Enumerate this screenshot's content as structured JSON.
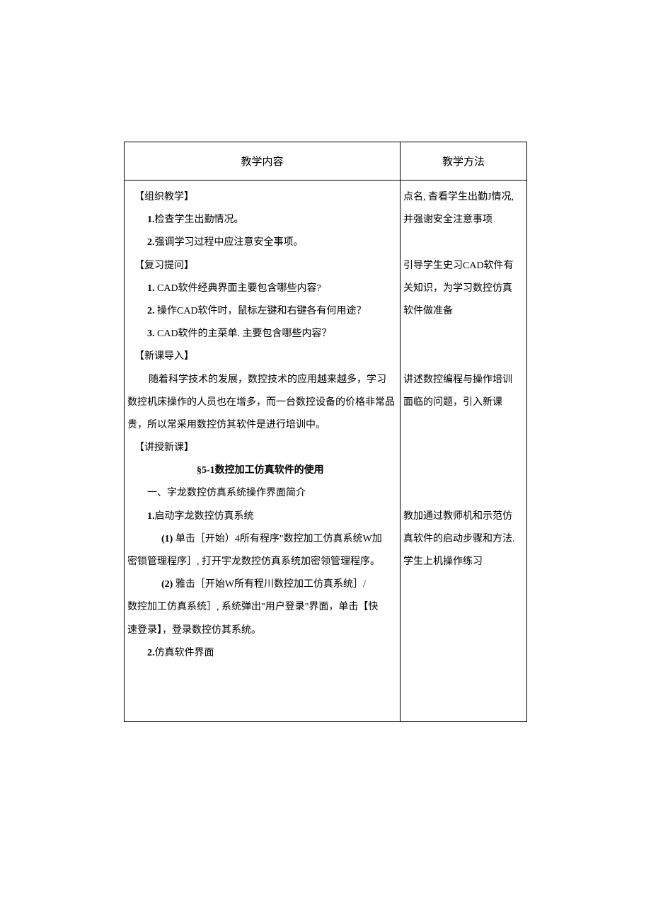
{
  "headers": {
    "left": "教学内容",
    "right": "教学方法"
  },
  "leftContent": {
    "org_teaching": "【组织教学】",
    "item1_prefix": "1.",
    "item1_text": "检查学生出勤情况。",
    "item2_prefix": "2.",
    "item2_text": "强调学习过程中应注意安全事项。",
    "review_q": "【复习提问】",
    "q1_prefix": "1.",
    "q1_text": "  CAD软件经典界面主要包含哪些内容?",
    "q2_prefix": "2.",
    "q2_text": " 操作CAD软件时，鼠标左键和右键各有何用途？",
    "q3_prefix": "3.",
    "q3_text": "  CAD软件的主菜单. 主要包含哪些内容？",
    "new_lesson": "【新课导入】",
    "intro1": "随着科学技术的发展，数控技术的应用越来越多，学习",
    "intro2": "数控机床操作的人员也在增多，而一台数控设备的价格非常品",
    "intro3": "贵，所以常采用数控仿其软件是进行培训中。",
    "teach_new": "【讲授新课】",
    "section_title": "§5-1数控加工仿真软件的使用",
    "subsection1": "一、字龙数控仿真系统操作界面简介",
    "step1_prefix": "1.",
    "step1_text": "启动字龙数控仿真系统",
    "sub1_prefix": "(1)",
    "sub1_text": " 单击［开始）4所有程序\"数控加工仿真系统W加",
    "sub1_cont": "密锁管理程序］, 打开宇龙数控仿真系统加密领管理程序。",
    "sub2_prefix": "(2)",
    "sub2_text": " 雅击［开始W所有程川数控加工仿真系统］/",
    "sub2_cont1": "数控加工仿真系统］, 系统弹出\"用户登录\"界面，单击【快",
    "sub2_cont2": "速登录】，登录数控仿其系统。",
    "step2_prefix": "2.",
    "step2_text": "仿真软件界面"
  },
  "rightContent": {
    "method1_line1": "点名, 杳看学生出勤J情况,",
    "method1_line2": "并强谢安全注意事项",
    "method2_line1": "引导学生史习CAD软件有",
    "method2_line2": "关知识，为学习数控仿真",
    "method2_line3": "软件做准备",
    "method3_line1": "讲述数控编程与操作培训",
    "method3_line2": "面临的问题，引入新课",
    "method4_line1": "教加通过教师机和示范仿",
    "method4_line2": "真软件的启动步骤和方法.",
    "method4_line3": "学生上机操作练习"
  }
}
